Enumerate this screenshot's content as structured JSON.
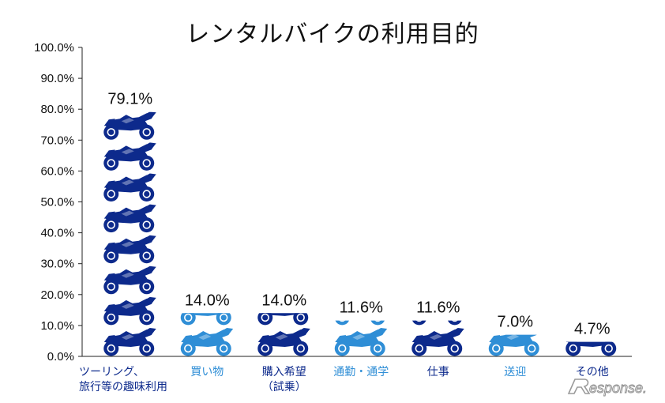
{
  "chart_data": {
    "type": "bar",
    "title": "レンタルバイクの利用目的",
    "categories": [
      [
        "ツーリング、",
        "旅行等の趣味利用"
      ],
      [
        "買い物"
      ],
      [
        "購入希望",
        "（試乗）"
      ],
      [
        "通勤・通学"
      ],
      [
        "仕事"
      ],
      [
        "送迎"
      ],
      [
        "その他"
      ]
    ],
    "values": [
      79.1,
      14.0,
      14.0,
      11.6,
      11.6,
      7.0,
      4.7
    ],
    "value_labels": [
      "79.1%",
      "14.0%",
      "14.0%",
      "11.6%",
      "11.6%",
      "7.0%",
      "4.7%"
    ],
    "bar_colors": [
      "#0d2a8c",
      "#2f8ed6",
      "#0d2a8c",
      "#2f8ed6",
      "#0d2a8c",
      "#2f8ed6",
      "#0d2a8c"
    ],
    "label_colors": [
      "#0d2a8c",
      "#2f8ed6",
      "#0d2a8c",
      "#2f8ed6",
      "#0d2a8c",
      "#2f8ed6",
      "#0d2a8c"
    ],
    "ylim": [
      0,
      100
    ],
    "yticks": [
      0,
      10,
      20,
      30,
      40,
      50,
      60,
      70,
      80,
      90,
      100
    ],
    "ytick_labels": [
      "0.0%",
      "10.0%",
      "20.0%",
      "30.0%",
      "40.0%",
      "50.0%",
      "60.0%",
      "70.0%",
      "80.0%",
      "90.0%",
      "100.0%"
    ],
    "icon_unit": 10,
    "icon": "motorcycle-icon",
    "grid": false,
    "legend": "none"
  },
  "watermark": {
    "text": "esponse."
  }
}
